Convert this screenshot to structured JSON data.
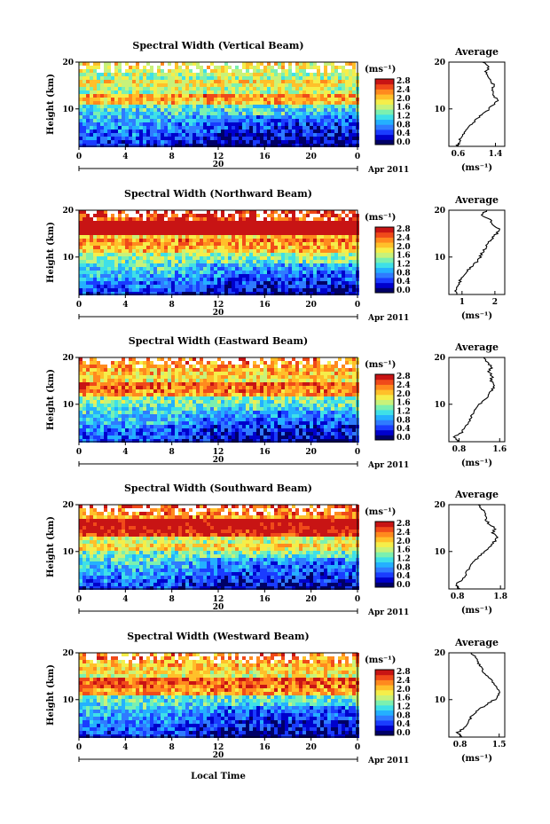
{
  "figure": {
    "x_axis_label": "Local Time",
    "date_label": "Apr 2011",
    "day_label": "20"
  },
  "colorbar": {
    "unit_label": "(ms⁻¹)",
    "ticks": [
      "2.8",
      "2.4",
      "2.0",
      "1.6",
      "1.2",
      "0.8",
      "0.4",
      "0.0"
    ],
    "colors": [
      "#000066",
      "#0000cc",
      "#1a3cff",
      "#2f7bff",
      "#24b0ff",
      "#3ee0e8",
      "#7bf0b0",
      "#c8f27a",
      "#f5ee4a",
      "#ffc02a",
      "#ff8a1e",
      "#f04a1a",
      "#c81414"
    ]
  },
  "chart_data": [
    {
      "type": "heatmap",
      "title": "Spectral Width (Vertical Beam)",
      "ylabel": "Height (km)",
      "x_ticks": [
        "0",
        "4",
        "8",
        "12",
        "16",
        "20",
        "0"
      ],
      "xlim": [
        0,
        24
      ],
      "y_ticks": [
        "20",
        "10"
      ],
      "ylim": [
        2,
        20
      ],
      "crange": [
        0,
        2.8
      ],
      "profile": {
        "title": "Average",
        "xlabel": "(ms⁻¹)",
        "x_ticks": [
          "0.6",
          "1.4"
        ],
        "xlim": [
          0.4,
          1.6
        ],
        "heights": [
          2,
          3,
          4,
          5,
          6,
          7,
          8,
          9,
          10,
          11,
          12,
          13,
          14,
          15,
          16,
          17,
          18,
          19,
          20
        ],
        "values": [
          0.58,
          0.62,
          0.66,
          0.72,
          0.82,
          0.92,
          1.02,
          1.14,
          1.26,
          1.38,
          1.45,
          1.35,
          1.32,
          1.38,
          1.28,
          1.22,
          1.2,
          1.26,
          1.12
        ]
      }
    },
    {
      "type": "heatmap",
      "title": "Spectral Width (Northward Beam)",
      "ylabel": "Height (km)",
      "x_ticks": [
        "0",
        "4",
        "8",
        "12",
        "16",
        "20",
        "0"
      ],
      "xlim": [
        0,
        24
      ],
      "y_ticks": [
        "20",
        "10"
      ],
      "ylim": [
        2,
        20
      ],
      "crange": [
        0,
        2.8
      ],
      "profile": {
        "title": "Average",
        "xlabel": "(ms⁻¹)",
        "x_ticks": [
          "1",
          "2"
        ],
        "xlim": [
          0.6,
          2.3
        ],
        "heights": [
          2,
          3,
          4,
          5,
          6,
          7,
          8,
          9,
          10,
          11,
          12,
          13,
          14,
          15,
          16,
          17,
          18,
          19,
          20
        ],
        "values": [
          0.8,
          0.82,
          0.9,
          0.95,
          1.02,
          1.15,
          1.3,
          1.45,
          1.55,
          1.62,
          1.75,
          1.78,
          1.92,
          2.05,
          2.15,
          1.9,
          1.85,
          1.6,
          1.75
        ]
      }
    },
    {
      "type": "heatmap",
      "title": "Spectral Width (Eastward Beam)",
      "ylabel": "Height (km)",
      "x_ticks": [
        "0",
        "4",
        "8",
        "12",
        "16",
        "20",
        "0"
      ],
      "xlim": [
        0,
        24
      ],
      "y_ticks": [
        "20",
        "10"
      ],
      "ylim": [
        2,
        20
      ],
      "crange": [
        0,
        2.8
      ],
      "profile": {
        "title": "Average",
        "xlabel": "(ms⁻¹)",
        "x_ticks": [
          "0.8",
          "1.6"
        ],
        "xlim": [
          0.6,
          1.7
        ],
        "heights": [
          2,
          3,
          4,
          5,
          6,
          7,
          8,
          9,
          10,
          11,
          12,
          13,
          14,
          15,
          16,
          17,
          18,
          19,
          20
        ],
        "values": [
          0.78,
          0.72,
          0.85,
          0.92,
          0.98,
          1.02,
          1.08,
          1.12,
          1.2,
          1.3,
          1.38,
          1.44,
          1.5,
          1.42,
          1.46,
          1.38,
          1.45,
          1.35,
          1.28
        ]
      }
    },
    {
      "type": "heatmap",
      "title": "Spectral Width (Southward Beam)",
      "ylabel": "Height (km)",
      "x_ticks": [
        "0",
        "4",
        "8",
        "12",
        "16",
        "20",
        "0"
      ],
      "xlim": [
        0,
        24
      ],
      "y_ticks": [
        "20",
        "10"
      ],
      "ylim": [
        2,
        20
      ],
      "crange": [
        0,
        2.8
      ],
      "profile": {
        "title": "Average",
        "xlabel": "(ms⁻¹)",
        "x_ticks": [
          "0.8",
          "1.8"
        ],
        "xlim": [
          0.6,
          1.9
        ],
        "heights": [
          2,
          3,
          4,
          5,
          6,
          7,
          8,
          9,
          10,
          11,
          12,
          13,
          14,
          15,
          16,
          17,
          18,
          19,
          20
        ],
        "values": [
          0.85,
          0.78,
          0.9,
          0.98,
          1.05,
          1.12,
          1.2,
          1.3,
          1.42,
          1.58,
          1.65,
          1.72,
          1.62,
          1.68,
          1.52,
          1.45,
          1.48,
          1.38,
          1.28
        ]
      }
    },
    {
      "type": "heatmap",
      "title": "Spectral Width (Westward Beam)",
      "ylabel": "Height (km)",
      "x_ticks": [
        "0",
        "4",
        "8",
        "12",
        "16",
        "20",
        "0"
      ],
      "xlim": [
        0,
        24
      ],
      "y_ticks": [
        "20",
        "10"
      ],
      "ylim": [
        2,
        20
      ],
      "crange": [
        0,
        2.8
      ],
      "profile": {
        "title": "Average",
        "xlabel": "(ms⁻¹)",
        "x_ticks": [
          "0.8",
          "1.5"
        ],
        "xlim": [
          0.6,
          1.6
        ],
        "heights": [
          2,
          3,
          4,
          5,
          6,
          7,
          8,
          9,
          10,
          11,
          12,
          13,
          14,
          15,
          16,
          17,
          18,
          19,
          20
        ],
        "values": [
          0.82,
          0.76,
          0.88,
          0.92,
          0.98,
          1.05,
          1.15,
          1.28,
          1.42,
          1.5,
          1.48,
          1.42,
          1.38,
          1.3,
          1.22,
          1.18,
          1.12,
          1.08,
          1.0
        ]
      }
    }
  ]
}
